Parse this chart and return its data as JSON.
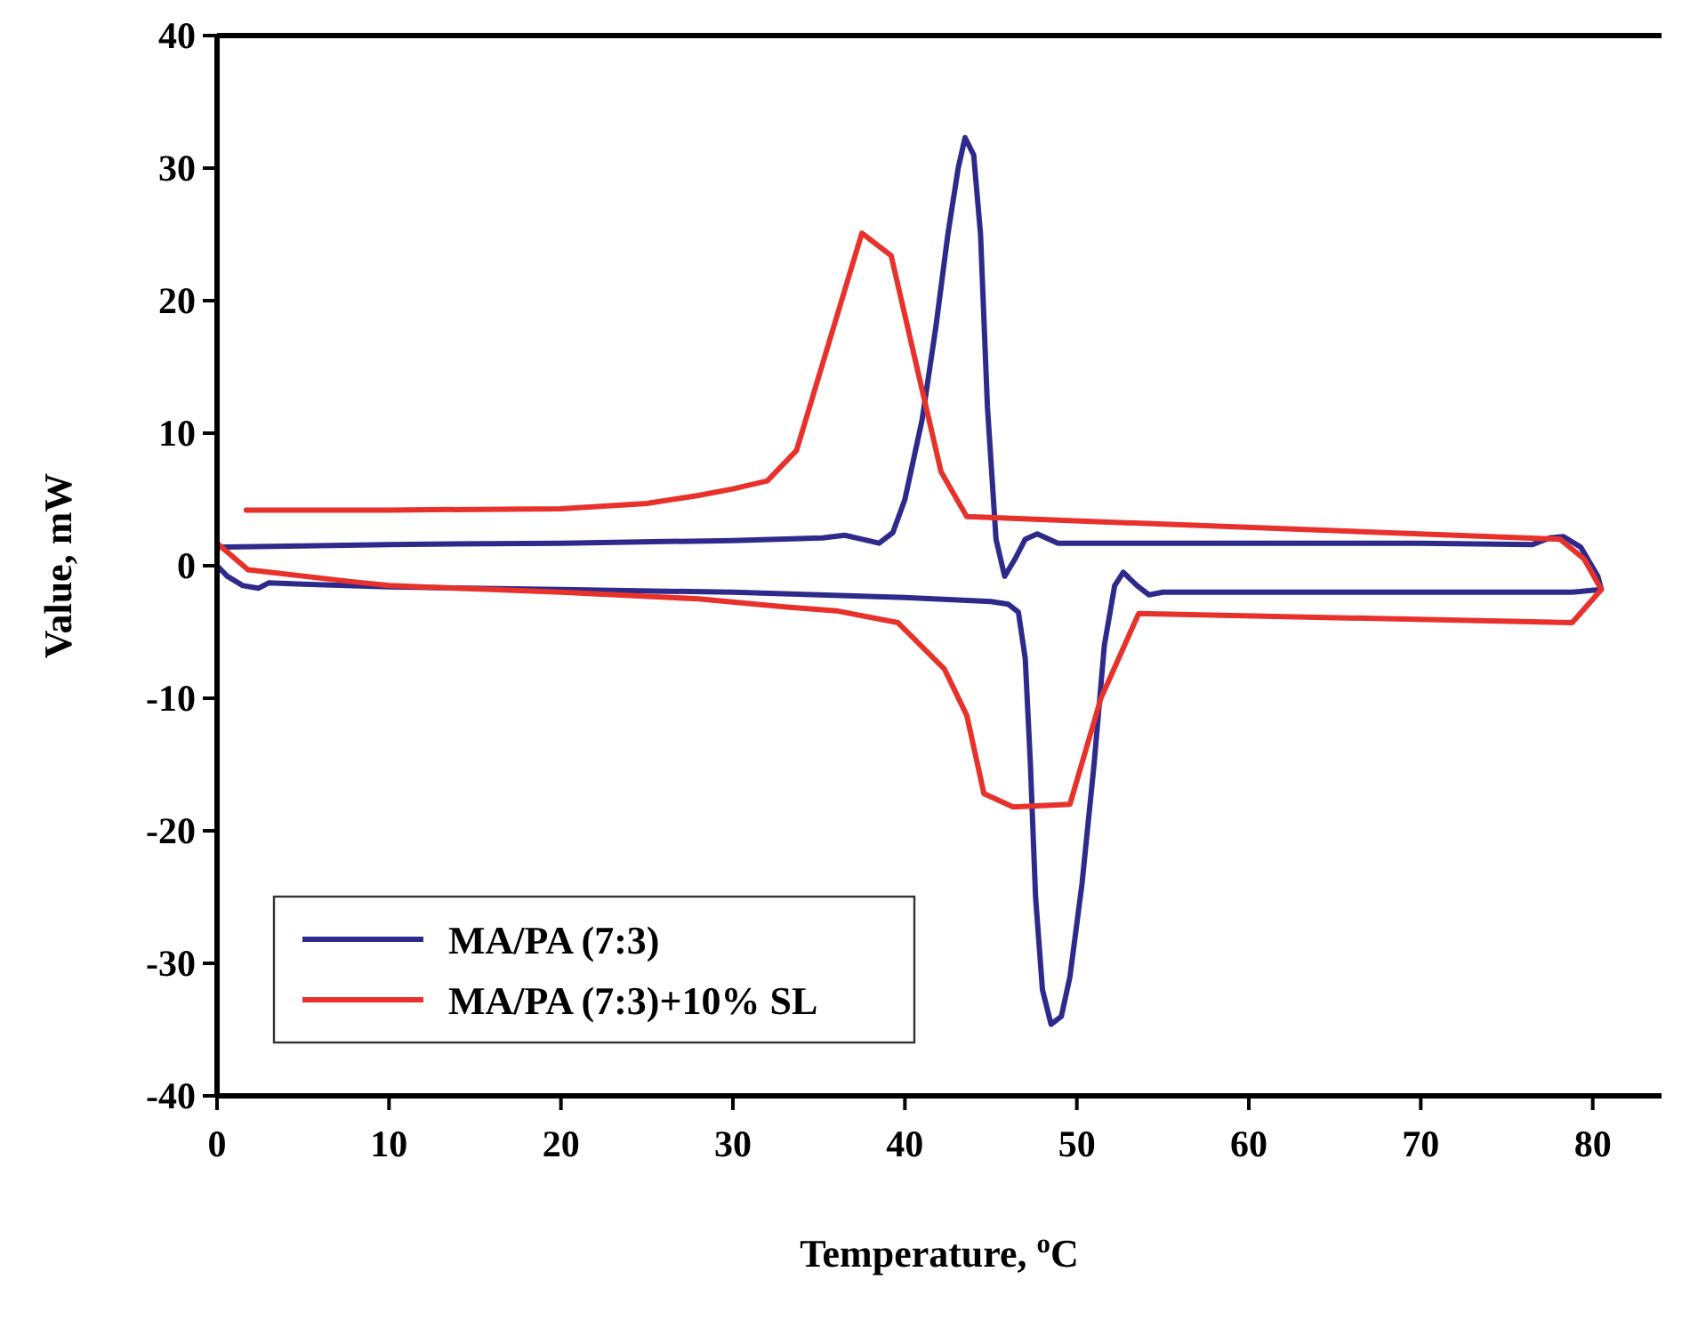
{
  "chart_data": {
    "type": "line",
    "xlabel": "Temperature, $^{o}$C",
    "ylabel": "Value, mW",
    "xlim": [
      0,
      84
    ],
    "ylim": [
      -40,
      40
    ],
    "xticks": [
      0,
      10,
      20,
      30,
      40,
      50,
      60,
      70,
      80
    ],
    "yticks": [
      -40,
      -30,
      -20,
      -10,
      0,
      10,
      20,
      30,
      40
    ],
    "grid": false,
    "legend": "bottom left",
    "marker": "none",
    "line_style": "solid",
    "series": [
      {
        "name": "MA/PA (7:3)",
        "color": "#2e2a8c",
        "x": [
          0,
          5,
          10,
          20,
          30,
          35.2,
          36.5,
          37.5,
          38.5,
          39.3,
          40,
          41,
          41.8,
          42.5,
          43.1,
          43.5,
          44,
          44.4,
          44.8,
          45.3,
          45.8,
          46.4,
          47,
          47.7,
          48.9,
          55,
          60,
          70,
          76.5,
          77.5,
          78.3,
          79.3,
          80.3,
          80.5,
          78.8,
          70,
          60,
          55,
          54.2,
          53.5,
          52.7,
          52.2,
          51.6,
          51,
          50.3,
          49.6,
          49.1,
          48.5,
          48,
          47.6,
          47.3,
          47,
          46.6,
          46,
          45,
          40,
          30,
          20,
          10,
          5,
          3,
          2.4,
          1.5,
          0.6,
          0
        ],
        "values": [
          1.4,
          1.5,
          1.6,
          1.7,
          1.9,
          2.1,
          2.3,
          2,
          1.7,
          2.5,
          5,
          11,
          18,
          25,
          30,
          32.3,
          31,
          25,
          12,
          2,
          -0.8,
          0.5,
          2,
          2.4,
          1.7,
          1.7,
          1.7,
          1.7,
          1.6,
          2.1,
          2.2,
          1.4,
          -0.8,
          -1.8,
          -2,
          -2,
          -2,
          -2,
          -2.2,
          -1.5,
          -0.5,
          -1.5,
          -6,
          -15,
          -24,
          -31,
          -34,
          -34.6,
          -32,
          -25,
          -15,
          -7,
          -3.5,
          -2.9,
          -2.7,
          -2.4,
          -2,
          -1.8,
          -1.6,
          -1.4,
          -1.3,
          -1.7,
          -1.5,
          -0.8,
          0
        ]
      },
      {
        "name": "MA/PA (7:3)+10% SL",
        "color": "#e8312b",
        "x": [
          1.7,
          10,
          20,
          25,
          28,
          30,
          32,
          33.7,
          37.5,
          39.2,
          42.1,
          43.6,
          78.1,
          79.5,
          80.5,
          78.8,
          53.6,
          51.4,
          49.6,
          46.3,
          44.6,
          43.6,
          42.3,
          39.6,
          36,
          33,
          28,
          20,
          10,
          7.8,
          1.8,
          0
        ],
        "values": [
          4.2,
          4.2,
          4.3,
          4.7,
          5.3,
          5.8,
          6.4,
          8.7,
          25.1,
          23.4,
          7.1,
          3.7,
          2,
          0.5,
          -1.8,
          -4.3,
          -3.6,
          -10,
          -18,
          -18.2,
          -17.2,
          -11.3,
          -7.8,
          -4.3,
          -3.4,
          -3.1,
          -2.5,
          -2,
          -1.5,
          -1.2,
          -0.3,
          1.7
        ]
      }
    ]
  }
}
